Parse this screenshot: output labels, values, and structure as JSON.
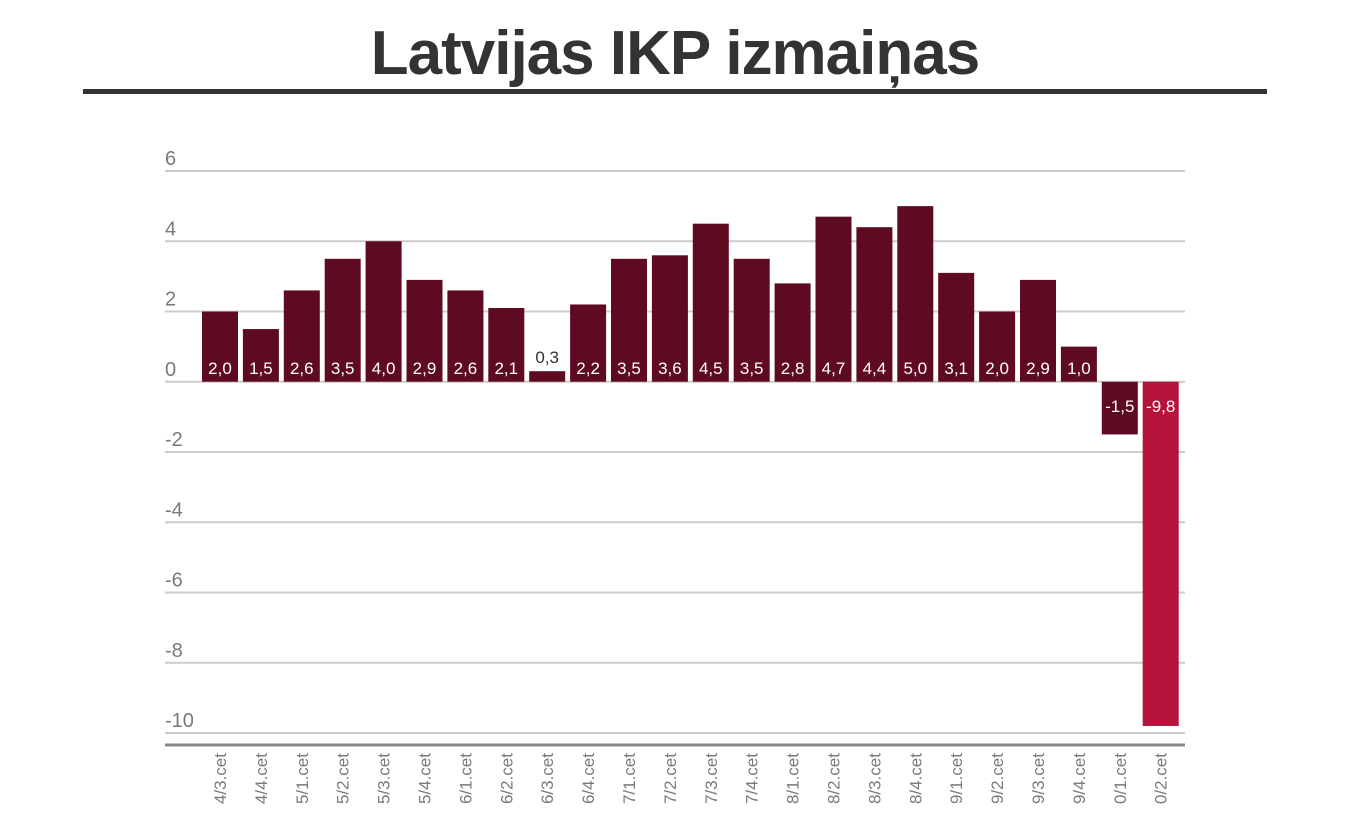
{
  "title": "Latvijas IKP izmaiņas",
  "chart_data": {
    "type": "bar",
    "title": "Latvijas IKP izmaiņas",
    "xlabel": "",
    "ylabel": "",
    "ylim": [
      -10,
      6
    ],
    "yticks": [
      6,
      4,
      2,
      0,
      -2,
      -4,
      -6,
      -8,
      -10
    ],
    "grid": true,
    "categories": [
      "4/3.cet",
      "4/4.cet",
      "5/1.cet",
      "5/2.cet",
      "5/3.cet",
      "5/4.cet",
      "6/1.cet",
      "6/2.cet",
      "6/3.cet",
      "6/4.cet",
      "7/1.cet",
      "7/2.cet",
      "7/3.cet",
      "7/4.cet",
      "8/1.cet",
      "8/2.cet",
      "8/3.cet",
      "8/4.cet",
      "9/1.cet",
      "9/2.cet",
      "9/3.cet",
      "9/4.cet",
      "0/1.cet",
      "0/2.cet"
    ],
    "values": [
      2.0,
      1.5,
      2.6,
      3.5,
      4.0,
      2.9,
      2.6,
      2.1,
      0.3,
      2.2,
      3.5,
      3.6,
      4.5,
      3.5,
      2.8,
      4.7,
      4.4,
      5.0,
      3.1,
      2.0,
      2.9,
      1.0,
      -1.5,
      -9.8
    ],
    "value_labels": [
      "2,0",
      "1,5",
      "2,6",
      "3,5",
      "4,0",
      "2,9",
      "2,6",
      "2,1",
      "0,3",
      "2,2",
      "3,5",
      "3,6",
      "4,5",
      "3,5",
      "2,8",
      "4,7",
      "4,4",
      "5,0",
      "3,1",
      "2,0",
      "2,9",
      "1,0",
      "-1,5",
      "-9,8"
    ],
    "colors": {
      "bar": "#5e0b22",
      "highlight_bar": "#b5123c",
      "grid": "#cccccc",
      "axis": "#888888",
      "tick_text": "#7a7a7a",
      "label_inside": "#ffffff",
      "label_outside": "#333333"
    },
    "highlight_index": 23
  }
}
